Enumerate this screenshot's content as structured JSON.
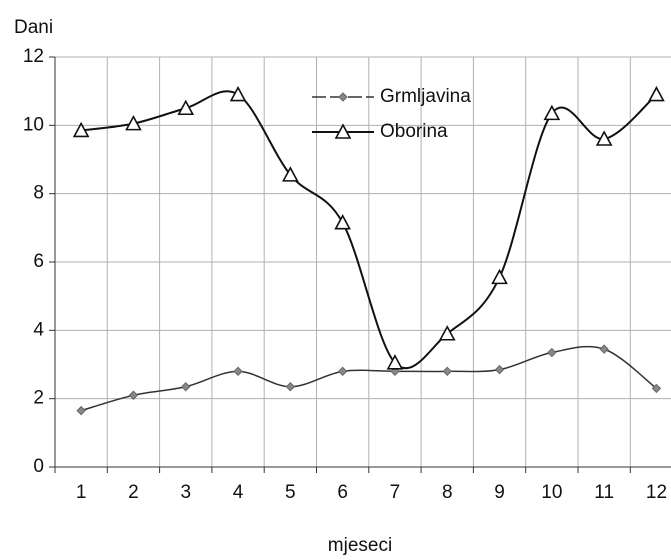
{
  "chart_data": {
    "type": "line",
    "y_label": "Dani",
    "x_label": "mjeseci",
    "categories": [
      "1",
      "2",
      "3",
      "4",
      "5",
      "6",
      "7",
      "8",
      "9",
      "10",
      "11",
      "12"
    ],
    "series": [
      {
        "name": "Grmljavina",
        "color": "#333333",
        "marker": "diamond",
        "values": [
          1.65,
          2.1,
          2.35,
          2.8,
          2.35,
          2.8,
          2.8,
          2.8,
          2.85,
          3.35,
          3.45,
          2.3
        ]
      },
      {
        "name": "Oborina",
        "color": "#111111",
        "marker": "triangle",
        "values": [
          9.85,
          10.05,
          10.5,
          10.9,
          8.55,
          7.15,
          3.05,
          3.9,
          5.55,
          10.35,
          9.6,
          10.9
        ]
      }
    ],
    "ylim": [
      0,
      12
    ],
    "yticks": [
      0,
      2,
      4,
      6,
      8,
      10,
      12
    ],
    "grid": true,
    "smooth": true
  }
}
